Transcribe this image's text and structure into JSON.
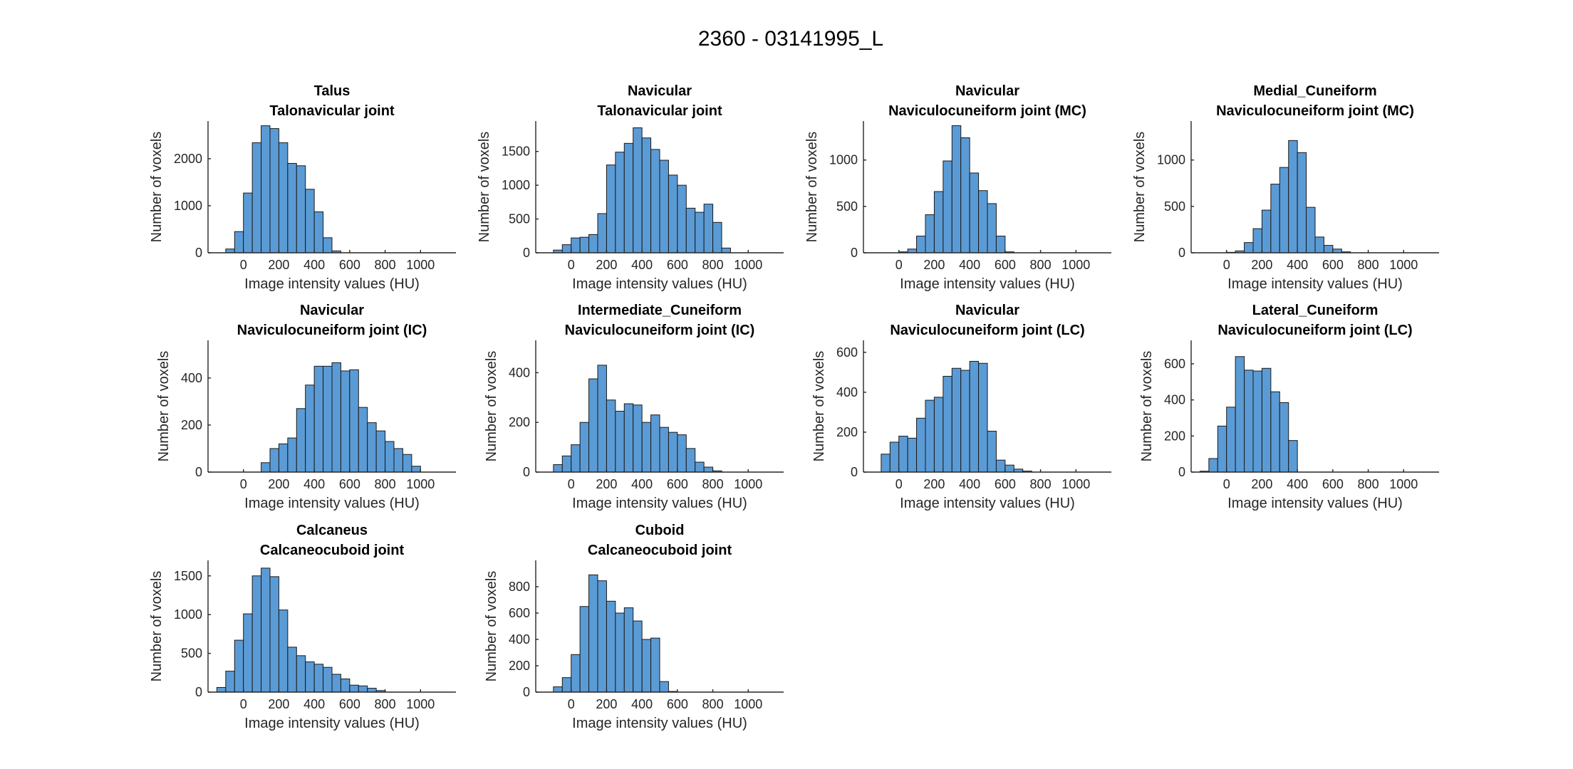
{
  "figure_title": "2360 - 03141995_L",
  "colors": {
    "bar_fill": "#5b9bd5",
    "bar_edge": "#1a1a1a",
    "axis": "#262626"
  },
  "chart_data": [
    {
      "type": "bar",
      "title": [
        "Talus",
        "Talonavicular joint"
      ],
      "xlabel": "Image intensity values (HU)",
      "ylabel": "Number of voxels",
      "bin_start": -100,
      "bin_width": 50,
      "xlim": [
        -200,
        1200
      ],
      "xticks": [
        0,
        200,
        400,
        600,
        800,
        1000
      ],
      "yticks": [
        0,
        1000,
        2000
      ],
      "ylim": [
        0,
        2800
      ],
      "values": [
        80,
        450,
        1270,
        2340,
        2700,
        2640,
        2340,
        1900,
        1850,
        1350,
        870,
        320,
        40
      ]
    },
    {
      "type": "bar",
      "title": [
        "Navicular",
        "Talonavicular joint"
      ],
      "xlabel": "Image intensity values (HU)",
      "ylabel": "Number of voxels",
      "bin_start": -100,
      "bin_width": 50,
      "xlim": [
        -200,
        1200
      ],
      "xticks": [
        0,
        200,
        400,
        600,
        800,
        1000
      ],
      "yticks": [
        0,
        500,
        1000,
        1500
      ],
      "ylim": [
        0,
        1950
      ],
      "values": [
        40,
        120,
        220,
        230,
        270,
        580,
        1300,
        1490,
        1620,
        1850,
        1700,
        1530,
        1370,
        1150,
        1000,
        660,
        600,
        720,
        450,
        70
      ]
    },
    {
      "type": "bar",
      "title": [
        "Navicular",
        "Naviculocuneiform joint (MC)"
      ],
      "xlabel": "Image intensity values (HU)",
      "ylabel": "Number of voxels",
      "bin_start": 0,
      "bin_width": 50,
      "xlim": [
        -200,
        1200
      ],
      "xticks": [
        0,
        200,
        400,
        600,
        800,
        1000
      ],
      "yticks": [
        0,
        500,
        1000
      ],
      "ylim": [
        0,
        1420
      ],
      "values": [
        10,
        40,
        180,
        410,
        660,
        990,
        1370,
        1240,
        860,
        670,
        530,
        180,
        10
      ]
    },
    {
      "type": "bar",
      "title": [
        "Medial_Cuneiform",
        "Naviculocuneiform joint (MC)"
      ],
      "xlabel": "Image intensity values (HU)",
      "ylabel": "Number of voxels",
      "bin_start": 0,
      "bin_width": 50,
      "xlim": [
        -200,
        1200
      ],
      "xticks": [
        0,
        200,
        400,
        600,
        800,
        1000
      ],
      "yticks": [
        0,
        500,
        1000
      ],
      "ylim": [
        0,
        1420
      ],
      "values": [
        5,
        20,
        110,
        260,
        460,
        740,
        920,
        1210,
        1080,
        490,
        170,
        80,
        40,
        10
      ]
    },
    {
      "type": "bar",
      "title": [
        "Navicular",
        "Naviculocuneiform joint (IC)"
      ],
      "xlabel": "Image intensity values (HU)",
      "ylabel": "Number of voxels",
      "bin_start": 100,
      "bin_width": 50,
      "xlim": [
        -200,
        1200
      ],
      "xticks": [
        0,
        200,
        400,
        600,
        800,
        1000
      ],
      "yticks": [
        0,
        200,
        400
      ],
      "ylim": [
        0,
        560
      ],
      "values": [
        40,
        100,
        120,
        145,
        270,
        370,
        450,
        450,
        465,
        430,
        435,
        275,
        210,
        175,
        130,
        100,
        75,
        25
      ]
    },
    {
      "type": "bar",
      "title": [
        "Intermediate_Cuneiform",
        "Naviculocuneiform joint (IC)"
      ],
      "xlabel": "Image intensity values (HU)",
      "ylabel": "Number of voxels",
      "bin_start": -100,
      "bin_width": 50,
      "xlim": [
        -200,
        1200
      ],
      "xticks": [
        0,
        200,
        400,
        600,
        800,
        1000
      ],
      "yticks": [
        0,
        200,
        400
      ],
      "ylim": [
        0,
        530
      ],
      "values": [
        30,
        65,
        110,
        200,
        375,
        430,
        290,
        245,
        275,
        270,
        200,
        230,
        180,
        160,
        150,
        95,
        40,
        20,
        5
      ]
    },
    {
      "type": "bar",
      "title": [
        "Navicular",
        "Naviculocuneiform joint (LC)"
      ],
      "xlabel": "Image intensity values (HU)",
      "ylabel": "Number of voxels",
      "bin_start": -100,
      "bin_width": 50,
      "xlim": [
        -200,
        1200
      ],
      "xticks": [
        0,
        200,
        400,
        600,
        800,
        1000
      ],
      "yticks": [
        0,
        200,
        400,
        600
      ],
      "ylim": [
        0,
        660
      ],
      "values": [
        90,
        150,
        180,
        170,
        270,
        360,
        375,
        480,
        520,
        510,
        555,
        545,
        205,
        60,
        35,
        15,
        5
      ]
    },
    {
      "type": "bar",
      "title": [
        "Lateral_Cuneiform",
        "Naviculocuneiform joint (LC)"
      ],
      "xlabel": "Image intensity values (HU)",
      "ylabel": "Number of voxels",
      "bin_start": -150,
      "bin_width": 50,
      "xlim": [
        -200,
        1200
      ],
      "xticks": [
        0,
        200,
        400,
        600,
        800,
        1000
      ],
      "yticks": [
        0,
        200,
        400,
        600
      ],
      "ylim": [
        0,
        730
      ],
      "values": [
        5,
        75,
        255,
        360,
        640,
        565,
        560,
        575,
        445,
        385,
        175
      ]
    },
    {
      "type": "bar",
      "title": [
        "Calcaneus",
        "Calcaneocuboid joint"
      ],
      "xlabel": "Image intensity values (HU)",
      "ylabel": "Number of voxels",
      "bin_start": -150,
      "bin_width": 50,
      "xlim": [
        -200,
        1200
      ],
      "xticks": [
        0,
        200,
        400,
        600,
        800,
        1000
      ],
      "yticks": [
        0,
        500,
        1000,
        1500
      ],
      "ylim": [
        0,
        1700
      ],
      "values": [
        60,
        270,
        670,
        1010,
        1500,
        1600,
        1490,
        1060,
        580,
        470,
        390,
        360,
        320,
        230,
        170,
        90,
        80,
        50,
        20
      ]
    },
    {
      "type": "bar",
      "title": [
        "Cuboid",
        "Calcaneocuboid joint"
      ],
      "xlabel": "Image intensity values (HU)",
      "ylabel": "Number of voxels",
      "bin_start": -100,
      "bin_width": 50,
      "xlim": [
        -200,
        1200
      ],
      "xticks": [
        0,
        200,
        400,
        600,
        800,
        1000
      ],
      "yticks": [
        0,
        200,
        400,
        600,
        800
      ],
      "ylim": [
        0,
        1000
      ],
      "values": [
        40,
        110,
        285,
        650,
        890,
        845,
        690,
        600,
        640,
        540,
        400,
        410,
        80,
        5
      ]
    }
  ]
}
